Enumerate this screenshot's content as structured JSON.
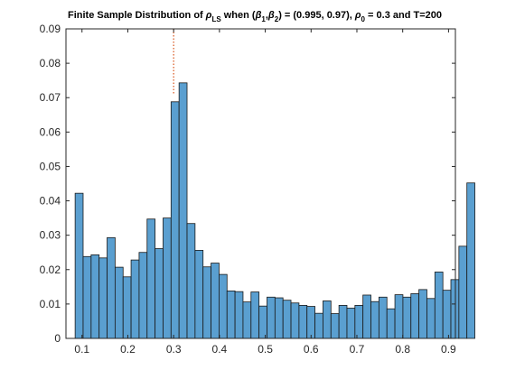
{
  "chart_data": {
    "type": "bar",
    "title_parts": {
      "main": "Finite Sample Distribution of ",
      "rho": "ρ",
      "rho_sub": "LS",
      "when": " when (",
      "beta": "β",
      "beta1_sub": "1",
      "comma": ",",
      "beta2_sub": "2",
      "values": ") = (0.995, 0.97), ",
      "rho0_sub": "0",
      "tail": " = 0.3 and T=200"
    },
    "xlabel": "",
    "ylabel": "",
    "xlim": [
      0.065,
      0.915
    ],
    "ylim": [
      0,
      0.09
    ],
    "xticks": [
      "0.1",
      "0.2",
      "0.3",
      "0.4",
      "0.5",
      "0.6",
      "0.7",
      "0.8",
      "0.9"
    ],
    "yticks": [
      "0",
      "0.01",
      "0.02",
      "0.03",
      "0.04",
      "0.05",
      "0.06",
      "0.07",
      "0.08",
      "0.09"
    ],
    "grid": false,
    "legend": "none",
    "reference_line": {
      "x": 0.3,
      "style": "dotted",
      "color": "#d95319"
    },
    "bar_color": "#5a9fd0",
    "bar_edge_color": "#1a1a1a",
    "bin_start": 0.085,
    "bin_width": 0.01745,
    "values": [
      0.0422,
      0.0238,
      0.0243,
      0.0234,
      0.0293,
      0.0207,
      0.0179,
      0.0228,
      0.025,
      0.0347,
      0.0261,
      0.035,
      0.0688,
      0.0743,
      0.0334,
      0.0256,
      0.0208,
      0.0219,
      0.0186,
      0.0138,
      0.0136,
      0.0106,
      0.0135,
      0.0094,
      0.012,
      0.0118,
      0.0111,
      0.0103,
      0.0096,
      0.0093,
      0.0073,
      0.0109,
      0.0072,
      0.0096,
      0.0088,
      0.0096,
      0.0126,
      0.0107,
      0.012,
      0.0086,
      0.0127,
      0.012,
      0.013,
      0.0142,
      0.0116,
      0.0193,
      0.014,
      0.0171,
      0.0268,
      0.0452
    ]
  }
}
